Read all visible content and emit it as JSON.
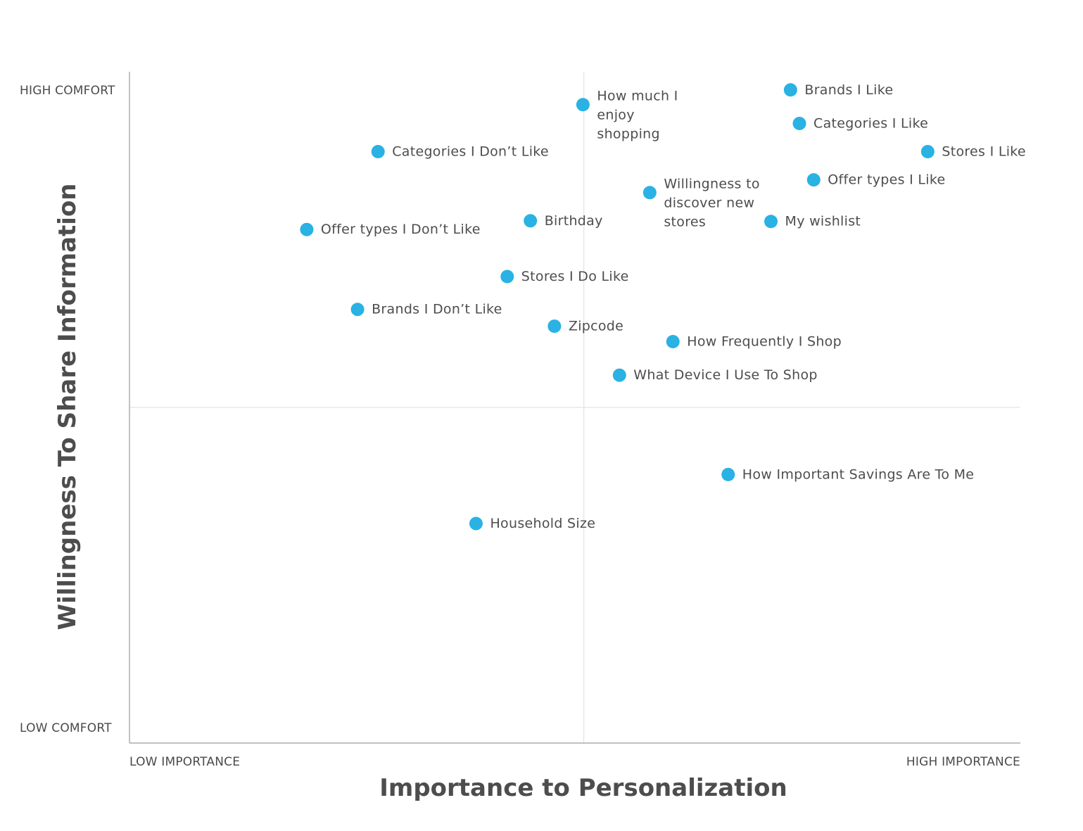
{
  "chart_data": {
    "type": "scatter",
    "title": "",
    "xlabel": "Importance to Personalization",
    "ylabel": "Willingness To Share Information",
    "x_end_labels": {
      "low": "LOW IMPORTANCE",
      "high": "HIGH IMPORTANCE"
    },
    "y_end_labels": {
      "low": "LOW COMFORT",
      "high": "HIGH COMFORT"
    },
    "xlim": [
      0,
      100
    ],
    "ylim": [
      0,
      100
    ],
    "quadrant_dividers": {
      "x": 51,
      "y": 50
    },
    "point_color": "#29b2e3",
    "points": [
      {
        "label": "How much I enjoy shopping",
        "lines": [
          "How much I",
          "enjoy",
          "shopping"
        ],
        "x": 50.9,
        "y": 95.1
      },
      {
        "label": "Brands I Like",
        "x": 74.2,
        "y": 97.3
      },
      {
        "label": "Categories I Like",
        "x": 75.2,
        "y": 92.3
      },
      {
        "label": "Stores I Like",
        "x": 89.6,
        "y": 88.1
      },
      {
        "label": "Categories I Don’t Like",
        "x": 27.9,
        "y": 88.1
      },
      {
        "label": "Willingness to discover new stores",
        "lines": [
          "Willingness to",
          "discover new",
          "stores"
        ],
        "x": 58.4,
        "y": 82.0
      },
      {
        "label": "Offer types I Like",
        "x": 76.8,
        "y": 83.9
      },
      {
        "label": "Offer types I Don’t Like",
        "x": 19.9,
        "y": 76.5
      },
      {
        "label": "Birthday",
        "x": 45.0,
        "y": 77.8
      },
      {
        "label": "My wishlist",
        "x": 72.0,
        "y": 77.7
      },
      {
        "label": "Stores I Do Like",
        "x": 42.4,
        "y": 69.5
      },
      {
        "label": "Brands I Don’t Like",
        "x": 25.6,
        "y": 64.6
      },
      {
        "label": "Zipcode",
        "x": 47.7,
        "y": 62.1
      },
      {
        "label": "How Frequently I Shop",
        "x": 61.0,
        "y": 59.8
      },
      {
        "label": "What Device I Use To Shop",
        "x": 55.0,
        "y": 54.8
      },
      {
        "label": "How Important Savings Are To Me",
        "x": 67.2,
        "y": 40.0
      },
      {
        "label": "Household Size",
        "x": 38.9,
        "y": 32.7
      }
    ]
  }
}
